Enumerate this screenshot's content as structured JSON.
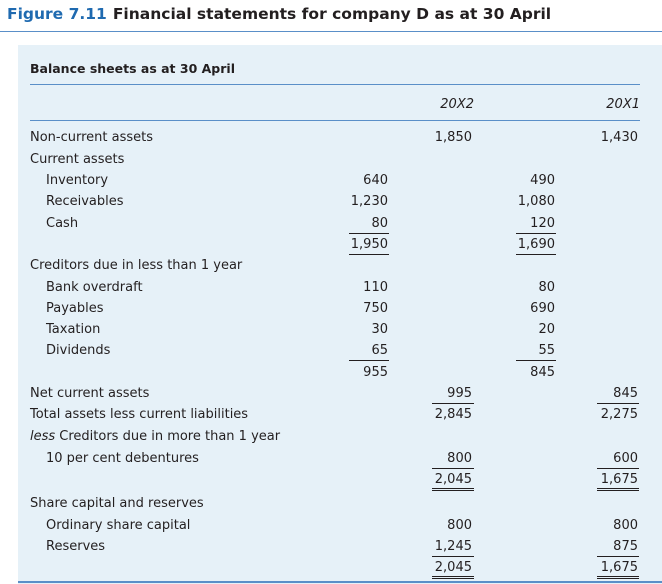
{
  "figure": {
    "label": "Figure 7.11",
    "title": "Financial statements for company D as at 30 April"
  },
  "panel": {
    "title": "Balance sheets as at 30 April",
    "col_20x2": "20X2",
    "col_20x1": "20X1"
  },
  "rows": {
    "non_current_assets": {
      "label": "Non-current assets",
      "x2": "1,850",
      "x1": "1,430"
    },
    "current_assets": {
      "label": "Current assets"
    },
    "inventory": {
      "label": "Inventory",
      "x2": "640",
      "x1": "490"
    },
    "receivables": {
      "label": "Receivables",
      "x2": "1,230",
      "x1": "1,080"
    },
    "cash": {
      "label": "Cash",
      "x2": "80",
      "x1": "120"
    },
    "ca_total": {
      "x2": "1,950",
      "x1": "1,690"
    },
    "creditors_lt1": {
      "label": "Creditors due in less than 1 year"
    },
    "bank_overdraft": {
      "label": "Bank overdraft",
      "x2": "110",
      "x1": "80"
    },
    "payables": {
      "label": "Payables",
      "x2": "750",
      "x1": "690"
    },
    "taxation": {
      "label": "Taxation",
      "x2": "30",
      "x1": "20"
    },
    "dividends": {
      "label": "Dividends",
      "x2": "65",
      "x1": "55"
    },
    "cl_total": {
      "x2": "955",
      "x1": "845"
    },
    "net_current_assets": {
      "label": "Net current assets",
      "x2": "995",
      "x1": "845"
    },
    "total_assets_less_cl": {
      "label": "Total assets less current liabilities",
      "x2": "2,845",
      "x1": "2,275"
    },
    "creditors_gt1": {
      "label": "less Creditors due in more than 1 year"
    },
    "debentures": {
      "label": "10 per cent debentures",
      "x2": "800",
      "x1": "600"
    },
    "net_assets": {
      "x2": "2,045",
      "x1": "1,675"
    },
    "share_capital_reserves": {
      "label": "Share capital and reserves"
    },
    "ordinary_share_capital": {
      "label": "Ordinary share capital",
      "x2": "800",
      "x1": "800"
    },
    "reserves": {
      "label": "Reserves",
      "x2": "1,245",
      "x1": "875"
    },
    "total_equity": {
      "x2": "2,045",
      "x1": "1,675"
    }
  }
}
